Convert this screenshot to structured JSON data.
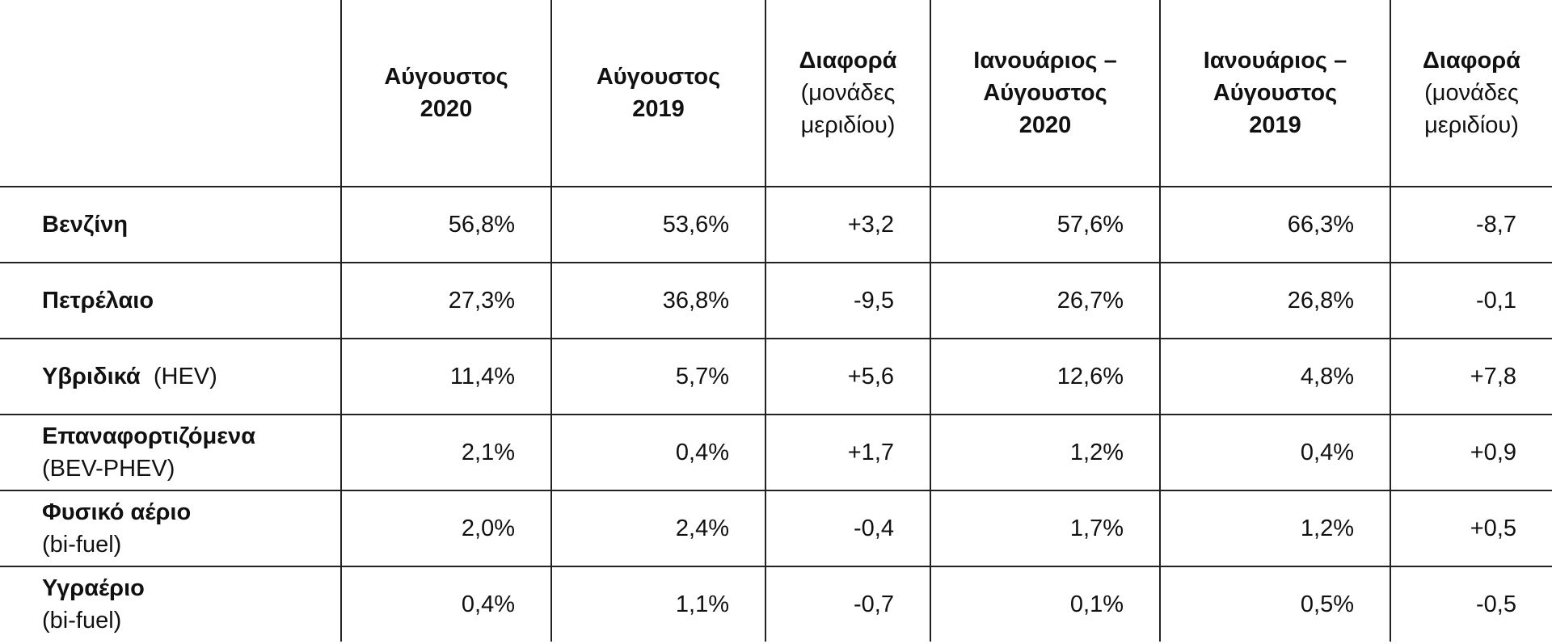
{
  "table": {
    "header": [
      {
        "lines": [
          "Αύγουστος",
          "2020"
        ]
      },
      {
        "lines": [
          "Αύγουστος",
          "2019"
        ]
      },
      {
        "lines": [
          "Διαφορά"
        ],
        "note": [
          "(μονάδες",
          "μεριδίου)"
        ]
      },
      {
        "lines": [
          "Ιανουάριος –",
          "Αύγουστος",
          "2020"
        ]
      },
      {
        "lines": [
          "Ιανουάριος –",
          "Αύγουστος",
          "2019"
        ]
      },
      {
        "lines": [
          "Διαφορά"
        ],
        "note": [
          "(μονάδες",
          "μεριδίου)"
        ]
      }
    ],
    "rows": [
      {
        "name": "Βενζίνη",
        "cells": [
          "56,8%",
          "53,6%",
          "+3,2",
          "57,6%",
          "66,3%",
          "-8,7"
        ]
      },
      {
        "name": "Πετρέλαιο",
        "cells": [
          "27,3%",
          "36,8%",
          "-9,5",
          "26,7%",
          "26,8%",
          "-0,1"
        ]
      },
      {
        "name": "Υβριδικά",
        "note": "(HEV)",
        "cells": [
          "11,4%",
          "5,7%",
          "+5,6",
          "12,6%",
          "4,8%",
          "+7,8"
        ]
      },
      {
        "name": "Επαναφορτιζόμενα",
        "note": "(BEV-PHEV)",
        "cells": [
          "2,1%",
          "0,4%",
          "+1,7",
          "1,2%",
          "0,4%",
          "+0,9"
        ]
      },
      {
        "name": "Φυσικό αέριο",
        "note": "(bi-fuel)",
        "cells": [
          "2,0%",
          "2,4%",
          "-0,4",
          "1,7%",
          "1,2%",
          "+0,5"
        ]
      },
      {
        "name": "Υγραέριο",
        "note": "(bi-fuel)",
        "cells": [
          "0,4%",
          "1,1%",
          "-0,7",
          "0,1%",
          "0,5%",
          "-0,5"
        ]
      }
    ]
  }
}
